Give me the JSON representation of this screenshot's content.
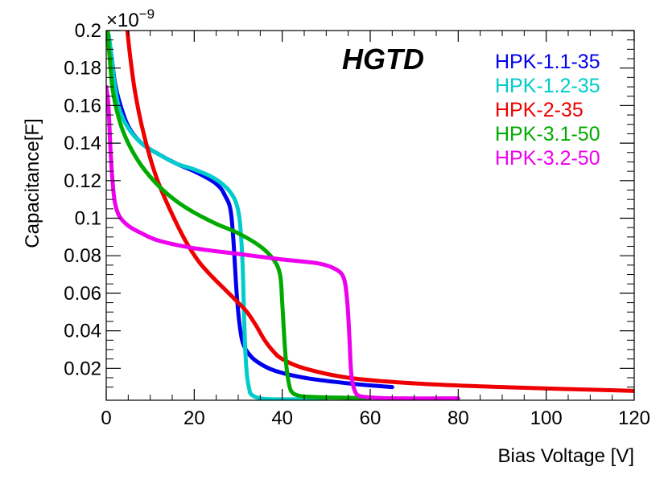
{
  "chart_data": {
    "type": "line",
    "title": "HGTD",
    "xlabel": "Bias Voltage [V]",
    "ylabel": "Capacitance[F]",
    "y_multiplier": "×10",
    "y_exponent": "−9",
    "xlim": [
      0,
      120
    ],
    "ylim": [
      0.003,
      0.2
    ],
    "x_ticks": [
      0,
      20,
      40,
      60,
      80,
      100,
      120
    ],
    "x_tick_labels": [
      "0",
      "20",
      "40",
      "60",
      "80",
      "100",
      "120"
    ],
    "y_ticks": [
      0.02,
      0.04,
      0.06,
      0.08,
      0.1,
      0.12,
      0.14,
      0.16,
      0.18,
      0.2
    ],
    "y_tick_labels": [
      "0.02",
      "0.04",
      "0.06",
      "0.08",
      "0.1",
      "0.12",
      "0.14",
      "0.16",
      "0.18",
      "0.2"
    ],
    "grid": false,
    "legend_position": "top-right",
    "series": [
      {
        "name": "HPK-1.1-35",
        "color": "#0000ee",
        "x": [
          0.5,
          1,
          2,
          3,
          5,
          8,
          12,
          16,
          20,
          24,
          26,
          27,
          28,
          28.5,
          29,
          29.5,
          30,
          30.5,
          31,
          32,
          34,
          38,
          45,
          55,
          65
        ],
        "y": [
          0.198,
          0.19,
          0.172,
          0.162,
          0.149,
          0.14,
          0.134,
          0.129,
          0.125,
          0.12,
          0.116,
          0.112,
          0.107,
          0.1,
          0.085,
          0.065,
          0.05,
          0.04,
          0.034,
          0.029,
          0.024,
          0.019,
          0.015,
          0.012,
          0.01
        ]
      },
      {
        "name": "HPK-1.2-35",
        "color": "#00cccc",
        "x": [
          0.5,
          1,
          2,
          3,
          5,
          8,
          12,
          16,
          20,
          24,
          27,
          29,
          30,
          30.5,
          31,
          31.3,
          31.6,
          32,
          32.5,
          33,
          35,
          38,
          42,
          50
        ],
        "y": [
          0.198,
          0.19,
          0.17,
          0.158,
          0.148,
          0.14,
          0.134,
          0.129,
          0.126,
          0.122,
          0.117,
          0.111,
          0.104,
          0.095,
          0.075,
          0.05,
          0.03,
          0.016,
          0.009,
          0.006,
          0.004,
          0.0035,
          0.0035,
          0.0035
        ]
      },
      {
        "name": "HPK-2-35",
        "color": "#ee0000",
        "x": [
          4.8,
          5.5,
          6.5,
          8,
          10,
          12,
          15,
          18,
          21,
          24,
          27,
          30,
          32,
          34,
          36,
          38,
          40,
          45,
          55,
          70,
          90,
          120
        ],
        "y": [
          0.2,
          0.185,
          0.168,
          0.15,
          0.132,
          0.118,
          0.102,
          0.088,
          0.077,
          0.069,
          0.062,
          0.055,
          0.05,
          0.043,
          0.035,
          0.029,
          0.025,
          0.02,
          0.015,
          0.012,
          0.01,
          0.008
        ]
      },
      {
        "name": "HPK-3.1-50",
        "color": "#00aa00",
        "x": [
          0.3,
          0.8,
          1.5,
          3,
          5,
          8,
          12,
          16,
          20,
          25,
          30,
          35,
          38,
          39.5,
          40,
          40.5,
          41,
          41.5,
          42,
          43,
          45,
          50,
          60
        ],
        "y": [
          0.2,
          0.185,
          0.168,
          0.152,
          0.14,
          0.128,
          0.117,
          0.109,
          0.103,
          0.097,
          0.092,
          0.085,
          0.078,
          0.07,
          0.055,
          0.035,
          0.02,
          0.012,
          0.008,
          0.006,
          0.005,
          0.0045,
          0.0042
        ]
      },
      {
        "name": "HPK-3.2-50",
        "color": "#ee00ee",
        "x": [
          0,
          0.5,
          1,
          1.5,
          2,
          3,
          5,
          8,
          12,
          20,
          30,
          40,
          48,
          52,
          54,
          54.8,
          55.3,
          55.6,
          56,
          56.5,
          57,
          58,
          60,
          65,
          80
        ],
        "y": [
          0.17,
          0.16,
          0.135,
          0.118,
          0.108,
          0.101,
          0.096,
          0.092,
          0.088,
          0.084,
          0.081,
          0.078,
          0.076,
          0.073,
          0.068,
          0.055,
          0.035,
          0.02,
          0.012,
          0.008,
          0.006,
          0.005,
          0.0045,
          0.004,
          0.004
        ]
      }
    ]
  }
}
